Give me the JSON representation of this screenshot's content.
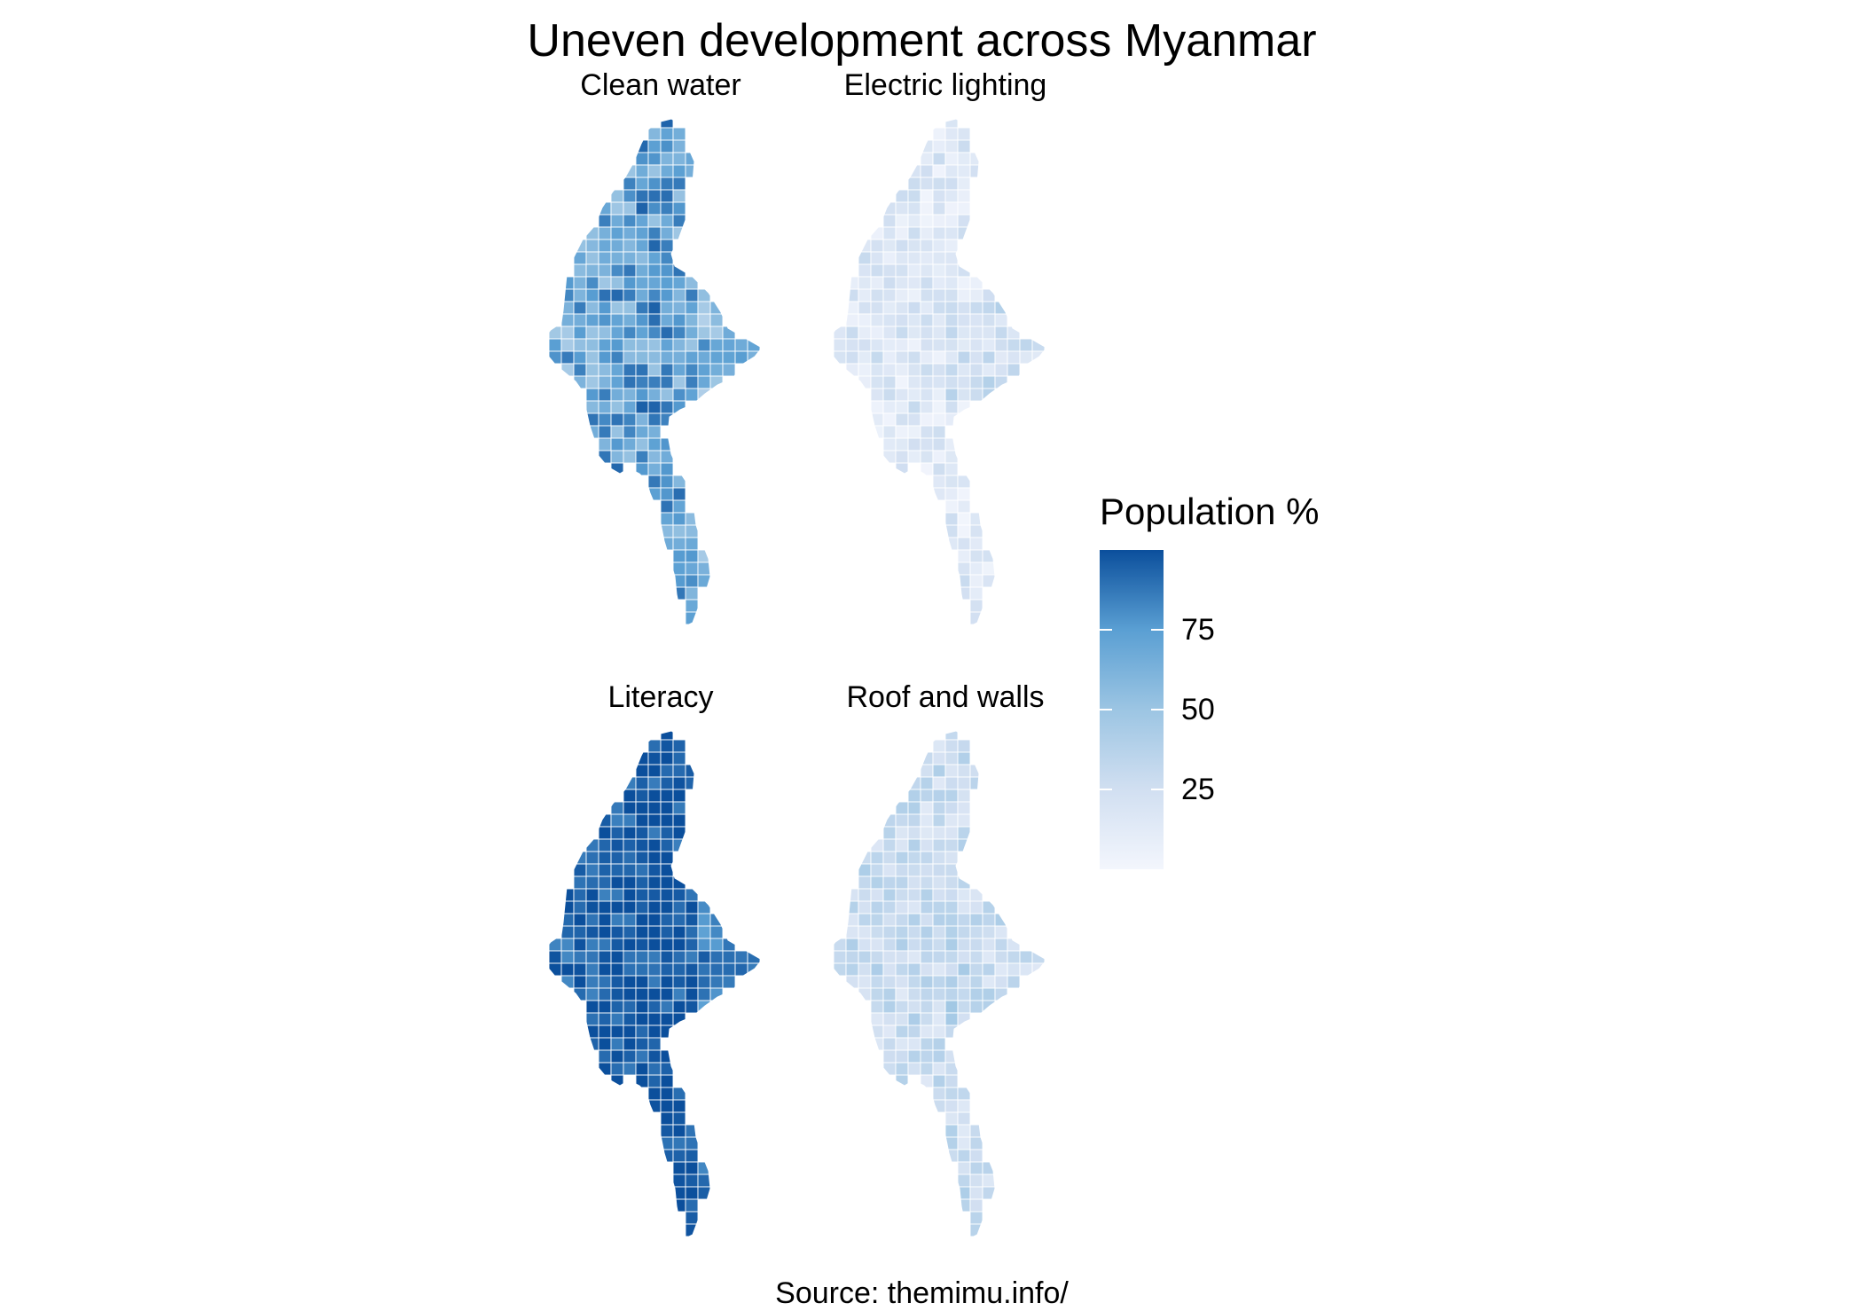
{
  "title": "Uneven development across Myanmar",
  "caption": "Source: themimu.info/",
  "legend": {
    "title": "Population %",
    "ticks": [
      "75",
      "50",
      "25"
    ],
    "tick_values": [
      75,
      50,
      25
    ],
    "range": [
      0,
      100
    ],
    "color_low": "#f3f6fd",
    "color_high": "#0b4f9c"
  },
  "panels": [
    {
      "label": "Clean water",
      "level": 0.68,
      "variation": 0.22
    },
    {
      "label": "Electric lighting",
      "level": 0.22,
      "variation": 0.14
    },
    {
      "label": "Literacy",
      "level": 0.9,
      "variation": 0.12
    },
    {
      "label": "Roof and walls",
      "level": 0.32,
      "variation": 0.14
    }
  ]
}
